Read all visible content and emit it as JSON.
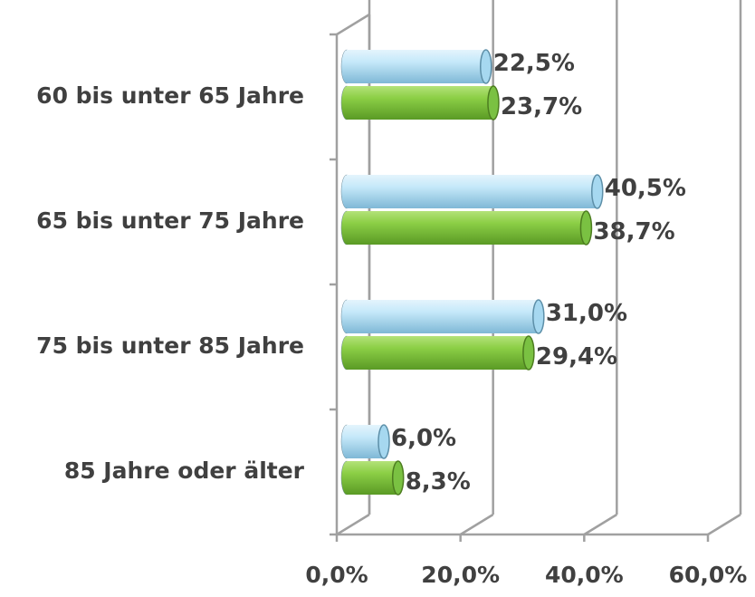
{
  "chart_data": {
    "type": "bar3d-horizontal",
    "categories": [
      "60 bis unter 65 Jahre",
      "65 bis unter 75 Jahre",
      "75 bis unter 85 Jahre",
      "85 Jahre oder älter"
    ],
    "series": [
      {
        "color": "#a6d8f0",
        "values": [
          22.5,
          40.5,
          31.0,
          6.0
        ],
        "value_labels": [
          "22,5%",
          "40,5%",
          "31,0%",
          "6,0%"
        ]
      },
      {
        "color": "#7ac142",
        "values": [
          23.7,
          38.7,
          29.4,
          8.3
        ],
        "value_labels": [
          "23,7%",
          "38,7%",
          "29,4%",
          "8,3%"
        ]
      }
    ],
    "xlim": [
      0,
      60
    ],
    "xticks": [
      {
        "value": 0,
        "label": "0,0%"
      },
      {
        "value": 20,
        "label": "20,0%"
      },
      {
        "value": 40,
        "label": "40,0%"
      },
      {
        "value": 60,
        "label": "60,0%"
      }
    ],
    "grid": true
  }
}
